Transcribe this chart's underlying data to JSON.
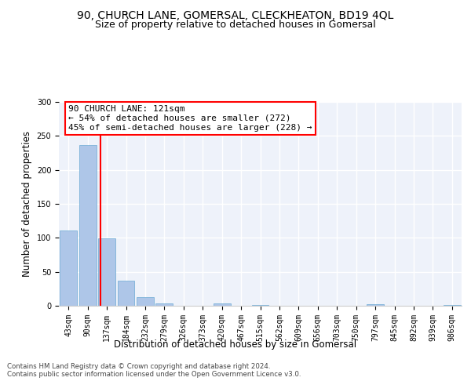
{
  "title1": "90, CHURCH LANE, GOMERSAL, CLECKHEATON, BD19 4QL",
  "title2": "Size of property relative to detached houses in Gomersal",
  "xlabel": "Distribution of detached houses by size in Gomersal",
  "ylabel": "Number of detached properties",
  "categories": [
    "43sqm",
    "90sqm",
    "137sqm",
    "184sqm",
    "232sqm",
    "279sqm",
    "326sqm",
    "373sqm",
    "420sqm",
    "467sqm",
    "515sqm",
    "562sqm",
    "609sqm",
    "656sqm",
    "703sqm",
    "750sqm",
    "797sqm",
    "845sqm",
    "892sqm",
    "939sqm",
    "986sqm"
  ],
  "values": [
    111,
    237,
    99,
    37,
    13,
    4,
    0,
    0,
    3,
    0,
    1,
    0,
    0,
    0,
    0,
    0,
    2,
    0,
    0,
    0,
    1
  ],
  "bar_color": "#aec6e8",
  "bar_edge_color": "#6aaad4",
  "annotation_text": "90 CHURCH LANE: 121sqm\n← 54% of detached houses are smaller (272)\n45% of semi-detached houses are larger (228) →",
  "annotation_box_color": "white",
  "annotation_box_edge": "red",
  "vline_color": "red",
  "ylim": [
    0,
    300
  ],
  "yticks": [
    0,
    50,
    100,
    150,
    200,
    250,
    300
  ],
  "background_color": "#eef2fa",
  "footer_text": "Contains HM Land Registry data © Crown copyright and database right 2024.\nContains public sector information licensed under the Open Government Licence v3.0.",
  "title1_fontsize": 10,
  "title2_fontsize": 9,
  "tick_fontsize": 7,
  "ylabel_fontsize": 8.5,
  "xlabel_fontsize": 8.5,
  "annotation_fontsize": 8
}
